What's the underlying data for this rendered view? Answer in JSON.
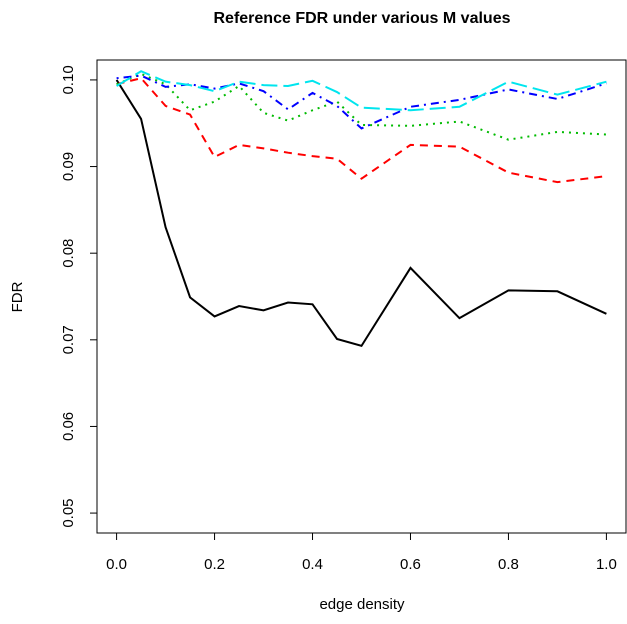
{
  "chart_data": {
    "type": "line",
    "title": "Reference FDR under various M values",
    "xlabel": "edge density",
    "ylabel": "FDR",
    "x": [
      0,
      0.05,
      0.1,
      0.15,
      0.2,
      0.25,
      0.3,
      0.35,
      0.4,
      0.45,
      0.5,
      0.6,
      0.7,
      0.8,
      0.9,
      1.0
    ],
    "series": [
      {
        "color": "#000000",
        "dash": "none",
        "values": [
          0.1,
          0.0955,
          0.083,
          0.0749,
          0.0727,
          0.0739,
          0.0734,
          0.0743,
          0.0741,
          0.0701,
          0.0693,
          0.0783,
          0.0725,
          0.0757,
          0.0756,
          0.073
        ]
      },
      {
        "color": "#ff0000",
        "dash": "8 6",
        "values": [
          0.0995,
          0.1002,
          0.097,
          0.096,
          0.0911,
          0.0925,
          0.0921,
          0.0916,
          0.0912,
          0.0909,
          0.0886,
          0.0925,
          0.0923,
          0.0893,
          0.0882,
          0.0889
        ]
      },
      {
        "color": "#00bb00",
        "dash": "2 5",
        "values": [
          0.0995,
          0.1007,
          0.0995,
          0.0965,
          0.0975,
          0.0993,
          0.0962,
          0.0953,
          0.0965,
          0.0975,
          0.0948,
          0.0947,
          0.0952,
          0.0931,
          0.094,
          0.0937
        ]
      },
      {
        "color": "#0000ff",
        "dash": "2 5 8 5",
        "values": [
          0.1002,
          0.1005,
          0.0992,
          0.0995,
          0.099,
          0.0996,
          0.0987,
          0.0966,
          0.0985,
          0.097,
          0.0944,
          0.0969,
          0.0977,
          0.0989,
          0.0978,
          0.0996
        ]
      },
      {
        "color": "#00e5ee",
        "dash": "16 6",
        "values": [
          0.0993,
          0.101,
          0.0998,
          0.0994,
          0.0987,
          0.0998,
          0.0994,
          0.0993,
          0.0999,
          0.0986,
          0.0968,
          0.0965,
          0.0969,
          0.0998,
          0.0983,
          0.0998
        ]
      }
    ],
    "xlim": [
      -0.04,
      1.04
    ],
    "ylim": [
      0.0477,
      0.1023
    ],
    "xticks": [
      {
        "value": 0,
        "label": "0.0"
      },
      0.2,
      0.4,
      0.6,
      0.8,
      {
        "value": 1,
        "label": "1.0"
      }
    ],
    "yticks": [
      0.05,
      0.06,
      0.07,
      0.08,
      0.09,
      {
        "value": 0.1,
        "label": "0.10"
      }
    ]
  }
}
